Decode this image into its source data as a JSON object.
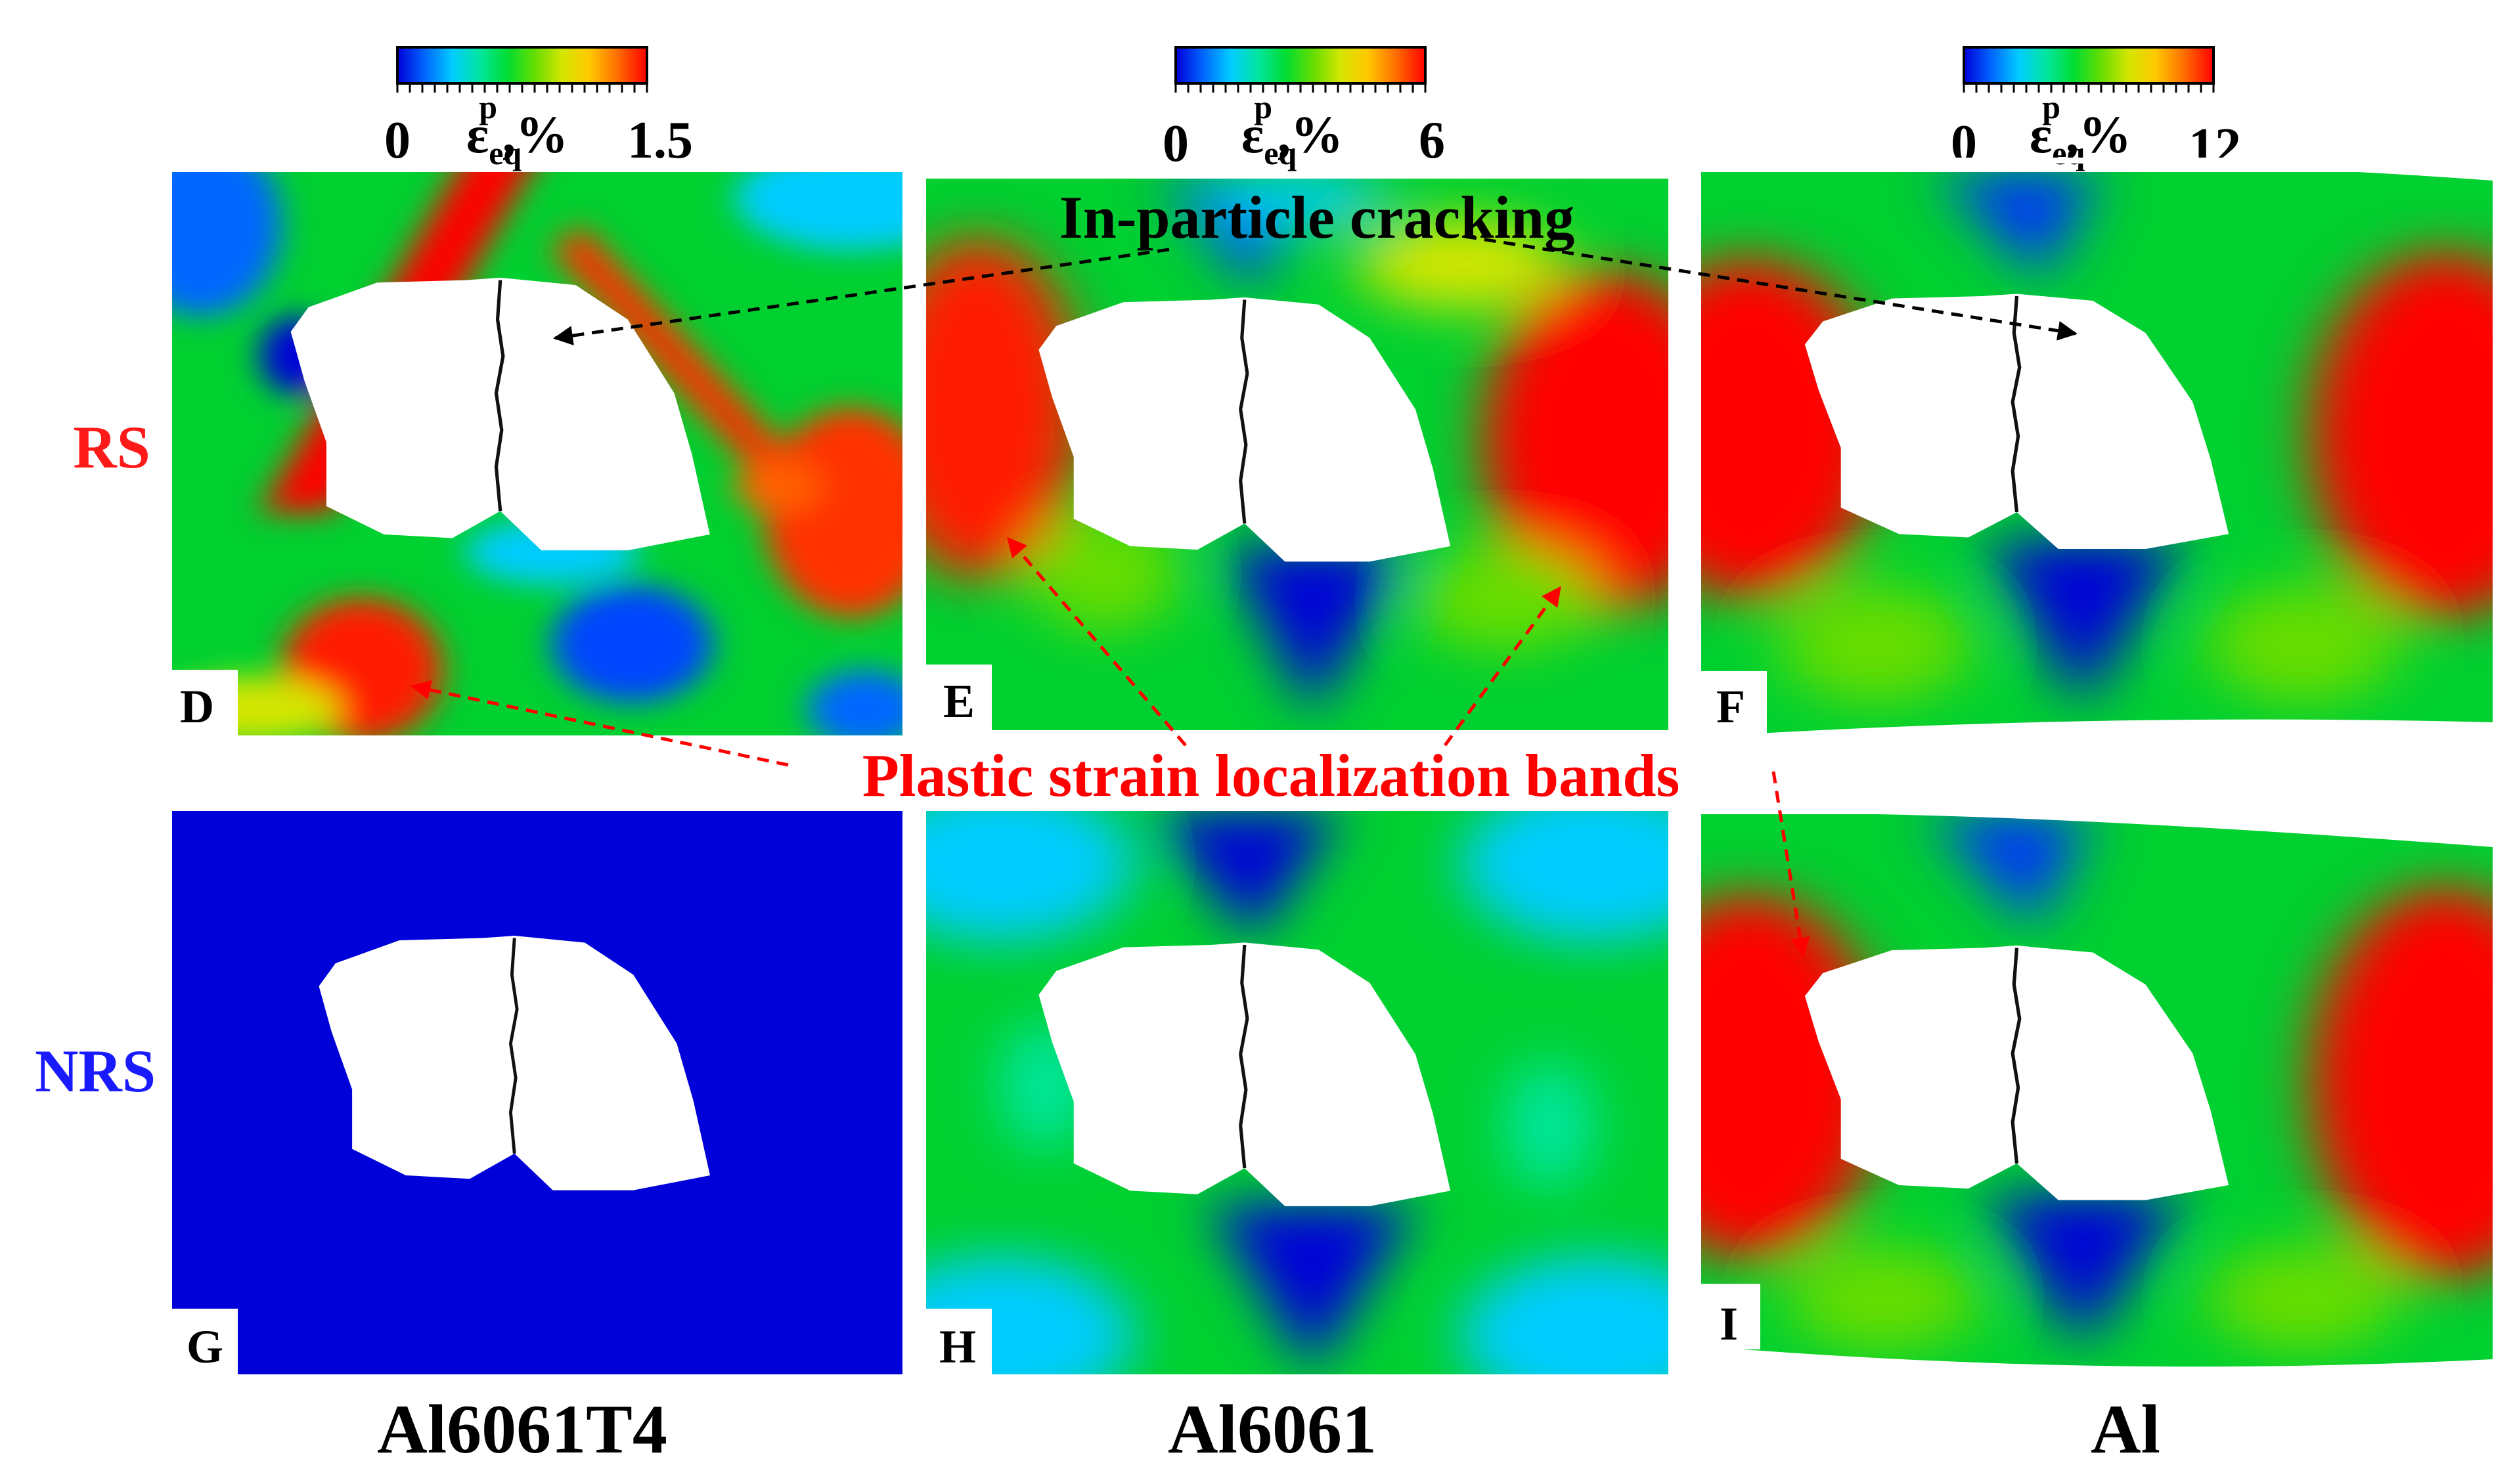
{
  "colorbars": [
    {
      "min_label": "0",
      "max_label": "1.5"
    },
    {
      "min_label": "0",
      "max_label": "6"
    },
    {
      "min_label": "0",
      "max_label": "12"
    }
  ],
  "colorbar_variable": {
    "symbol": "ε",
    "sub": "eq",
    "sup": "p",
    "unit": ",%"
  },
  "colormap": [
    "#0000d8",
    "#0066ff",
    "#00ccff",
    "#00e6a0",
    "#00dd33",
    "#66dd00",
    "#d4e600",
    "#ffc800",
    "#ff7000",
    "#ff0000"
  ],
  "row_labels": [
    {
      "text": "RS",
      "color": "#ff1a1a"
    },
    {
      "text": "NRS",
      "color": "#1a1aff"
    }
  ],
  "column_labels": [
    "Al6061T4",
    "Al6061",
    "Al"
  ],
  "panel_letters": [
    "D",
    "E",
    "F",
    "G",
    "H",
    "I"
  ],
  "annotations": {
    "cracking": {
      "text": "In-particle cracking",
      "color": "#000000"
    },
    "bands": {
      "text": "Plastic strain localization bands",
      "color": "#ff0000"
    }
  }
}
